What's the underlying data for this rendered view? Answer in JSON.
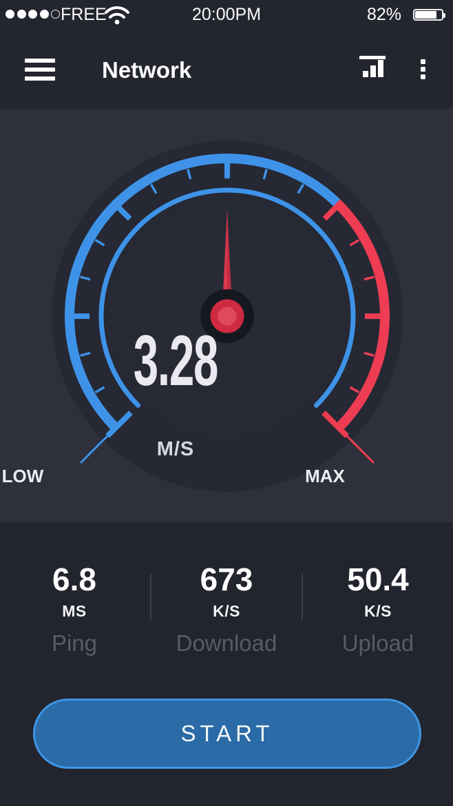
{
  "status_bar": {
    "carrier": "FREE",
    "time": "20:00PM",
    "battery_percent": "82%",
    "signal_filled_dots": 4,
    "signal_total_dots": 5
  },
  "header": {
    "title": "Network"
  },
  "gauge": {
    "value": "3.28",
    "unit": "M/S",
    "low_label": "LOW",
    "max_label": "MAX"
  },
  "chart_data": {
    "type": "gauge",
    "value": 3.28,
    "unit": "M/S",
    "min_label": "LOW",
    "max_label": "MAX",
    "start_angle_deg": -135,
    "end_angle_deg": 135,
    "red_zone_start_deg": 45,
    "needle_angle_deg": 0,
    "tick_step_deg": 15,
    "major_tick_step_deg": 45,
    "colors": {
      "blue": "#3e93e8",
      "red": "#ee3d52",
      "needle_dark": "#c62c41",
      "needle_light": "#da3850",
      "hub_dark": "#16181f",
      "hub_ring": "#ce2b41",
      "hub_center": "#e0495d"
    }
  },
  "stats": {
    "items": [
      {
        "value": "6.8",
        "unit": "MS",
        "label": "Ping"
      },
      {
        "value": "673",
        "unit": "K/S",
        "label": "Download"
      },
      {
        "value": "50.4",
        "unit": "K/S",
        "label": "Upload"
      }
    ]
  },
  "start_button": {
    "label": "START"
  },
  "colors": {
    "topbar_bg": "#24262f",
    "gauge_section_bg": "#2e303c",
    "bottom_bg": "#22242e",
    "accent_blue": "#3e93e8",
    "accent_red": "#ee3d52",
    "button_fill": "#2b6ba7",
    "button_border": "#3e96e6",
    "muted_label": "#585c68"
  }
}
